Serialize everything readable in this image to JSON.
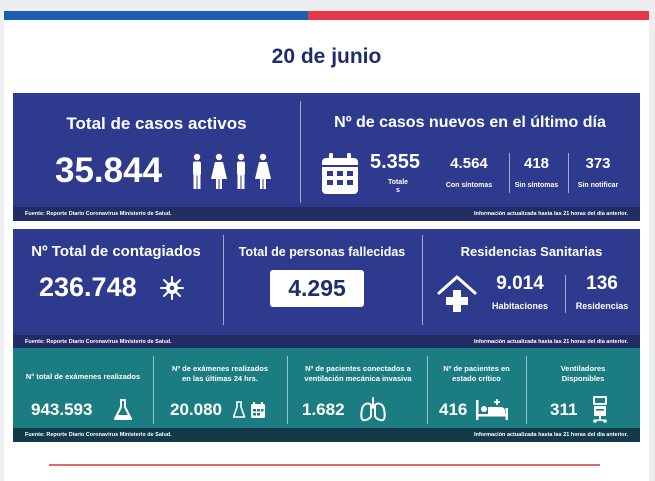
{
  "date": "20 de junio",
  "active": {
    "title": "Total de casos activos",
    "value": "35.844"
  },
  "new_cases": {
    "title": "Nº de casos nuevos en el último día",
    "total_value": "5.355",
    "total_label_1": "Totale",
    "total_label_2": "s",
    "sintomas_value": "4.564",
    "sintomas_label": "Con síntomas",
    "sin_sintomas_value": "418",
    "sin_sintomas_label": "Sin síntomas",
    "sin_notificar_value": "373",
    "sin_notificar_label": "Sin notificar"
  },
  "contagiados": {
    "title": "Nº Total de contagiados",
    "value": "236.748"
  },
  "fallecidas": {
    "title": "Total de personas fallecidas",
    "value": "4.295"
  },
  "residencias": {
    "title": "Residencias Sanitarias",
    "habitaciones_value": "9.014",
    "habitaciones_label": "Habitaciones",
    "residencias_value": "136",
    "residencias_label": "Residencias"
  },
  "examenes": {
    "title": "N° total de exámenes realizados",
    "value": "943.593"
  },
  "examenes_24": {
    "title_1": "Nº de exámenes realizados",
    "title_2": "en las últimas 24 hrs.",
    "value": "20.080"
  },
  "ventilacion": {
    "title_1": "Nº de pacientes conectados a",
    "title_2": "ventilación mecánica invasiva",
    "value": "1.682"
  },
  "critico": {
    "title_1": "Nº de pacientes  en",
    "title_2": "estado crítico",
    "value": "416"
  },
  "ventiladores": {
    "title_1": "Ventiladores",
    "title_2": "Disponibles",
    "value": "311"
  },
  "footer": {
    "source": "Fuente: Reporte Diario Coronavirus Ministerio de Salud.",
    "updated": "Información actualizada hasta las 21 horas  del día anterior."
  },
  "colors": {
    "blue_panel": "#2d3a8e",
    "teal_panel": "#1b7d82",
    "bar_blue": "#1d5fae",
    "bar_red": "#e8394a"
  }
}
